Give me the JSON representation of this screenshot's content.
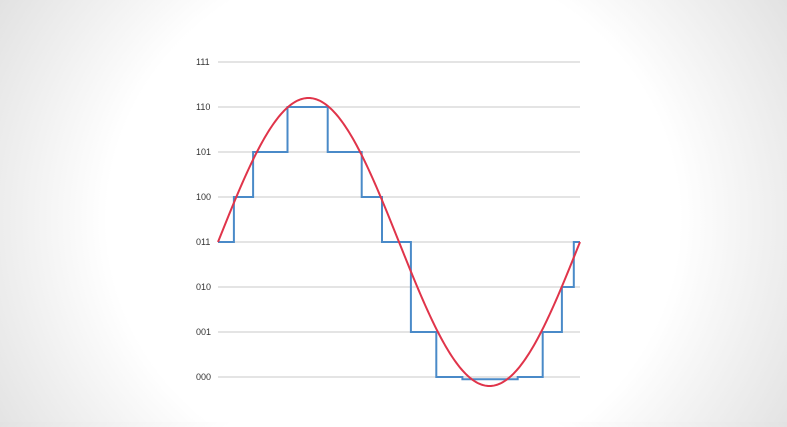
{
  "chart_data": {
    "type": "line",
    "title": "",
    "xlabel": "",
    "ylabel": "",
    "y_ticks": [
      "000",
      "001",
      "010",
      "011",
      "100",
      "101",
      "110",
      "111"
    ],
    "y_range": [
      0,
      7
    ],
    "x_range": [
      0,
      1
    ],
    "grid": "horizontal",
    "legend": "none",
    "series": [
      {
        "kind": "analog-sine",
        "color": "#e0344a",
        "center": 3,
        "amplitude": 3.2,
        "cycles": 1
      },
      {
        "kind": "quantized-step",
        "color": "#4a8ac8",
        "steps": [
          {
            "x0": 0.0,
            "x1": 0.044,
            "level": 3
          },
          {
            "x0": 0.044,
            "x1": 0.097,
            "level": 4
          },
          {
            "x0": 0.097,
            "x1": 0.192,
            "level": 5
          },
          {
            "x0": 0.192,
            "x1": 0.303,
            "level": 6
          },
          {
            "x0": 0.303,
            "x1": 0.397,
            "level": 5
          },
          {
            "x0": 0.397,
            "x1": 0.453,
            "level": 4
          },
          {
            "x0": 0.453,
            "x1": 0.533,
            "level": 3
          },
          {
            "x0": 0.533,
            "x1": 0.603,
            "level": 1
          },
          {
            "x0": 0.603,
            "x1": 0.675,
            "level": 0
          },
          {
            "x0": 0.675,
            "x1": 0.828,
            "level": -0.05
          },
          {
            "x0": 0.828,
            "x1": 0.897,
            "level": 0
          },
          {
            "x0": 0.897,
            "x1": 0.95,
            "level": 1
          },
          {
            "x0": 0.95,
            "x1": 0.983,
            "level": 2
          },
          {
            "x0": 0.983,
            "x1": 1.0,
            "level": 3
          }
        ]
      }
    ]
  }
}
